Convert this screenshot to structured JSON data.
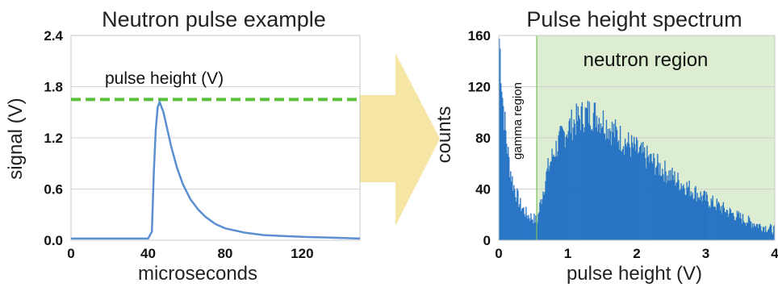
{
  "chart_data": [
    {
      "type": "line",
      "title": "Neutron pulse example",
      "xlabel": "microseconds",
      "ylabel": "signal (V)",
      "xlim": [
        0,
        150
      ],
      "ylim": [
        0,
        2.4
      ],
      "x_ticks": [
        "0",
        "40",
        "80",
        "120"
      ],
      "y_ticks": [
        "0.0",
        "0.6",
        "1.2",
        "1.8",
        "2.4"
      ],
      "grid": "horizontal",
      "series": [
        {
          "x": [
            0,
            20,
            40,
            42,
            43,
            44,
            45,
            46,
            48,
            50,
            52,
            55,
            58,
            62,
            66,
            70,
            75,
            80,
            90,
            100,
            110,
            120,
            135,
            150
          ],
          "y": [
            0.02,
            0.02,
            0.02,
            0.1,
            0.8,
            1.3,
            1.56,
            1.62,
            1.5,
            1.3,
            1.1,
            0.85,
            0.66,
            0.48,
            0.36,
            0.27,
            0.19,
            0.14,
            0.09,
            0.06,
            0.05,
            0.04,
            0.03,
            0.02
          ],
          "color": "#5b8fd0"
        }
      ],
      "reference_line": {
        "y": 1.65,
        "color": "#5bbf3a",
        "style": "dashed"
      },
      "annotations": [
        "pulse height (V)"
      ]
    },
    {
      "type": "bar",
      "title": "Pulse height spectrum",
      "xlabel": "pulse height (V)",
      "ylabel": "counts",
      "xlim": [
        0,
        4
      ],
      "ylim": [
        0,
        160
      ],
      "x_ticks": [
        "0",
        "1",
        "2",
        "3",
        "4"
      ],
      "y_ticks": [
        "0",
        "40",
        "80",
        "120",
        "160"
      ],
      "grid": "horizontal",
      "bar_color": "#1f6fc2",
      "envelope": {
        "x": [
          0.0,
          0.02,
          0.05,
          0.1,
          0.15,
          0.2,
          0.3,
          0.4,
          0.5,
          0.55,
          0.6,
          0.7,
          0.8,
          0.9,
          1.0,
          1.1,
          1.2,
          1.3,
          1.4,
          1.5,
          1.6,
          1.7,
          1.8,
          2.0,
          2.2,
          2.4,
          2.6,
          2.8,
          3.0,
          3.2,
          3.4,
          3.6,
          3.8,
          4.0
        ],
        "counts": [
          158,
          140,
          110,
          80,
          58,
          44,
          28,
          20,
          17,
          15,
          30,
          55,
          70,
          80,
          88,
          93,
          97,
          99,
          98,
          94,
          88,
          83,
          78,
          70,
          62,
          54,
          46,
          39,
          32,
          26,
          20,
          15,
          11,
          8
        ]
      },
      "regions": [
        {
          "label": "gamma region",
          "x_range": [
            0,
            0.55
          ]
        },
        {
          "label": "neutron region",
          "x_range": [
            0.55,
            4.0
          ],
          "color": "#dcedd1"
        }
      ]
    }
  ],
  "arrow_color": "#f6e6a6"
}
